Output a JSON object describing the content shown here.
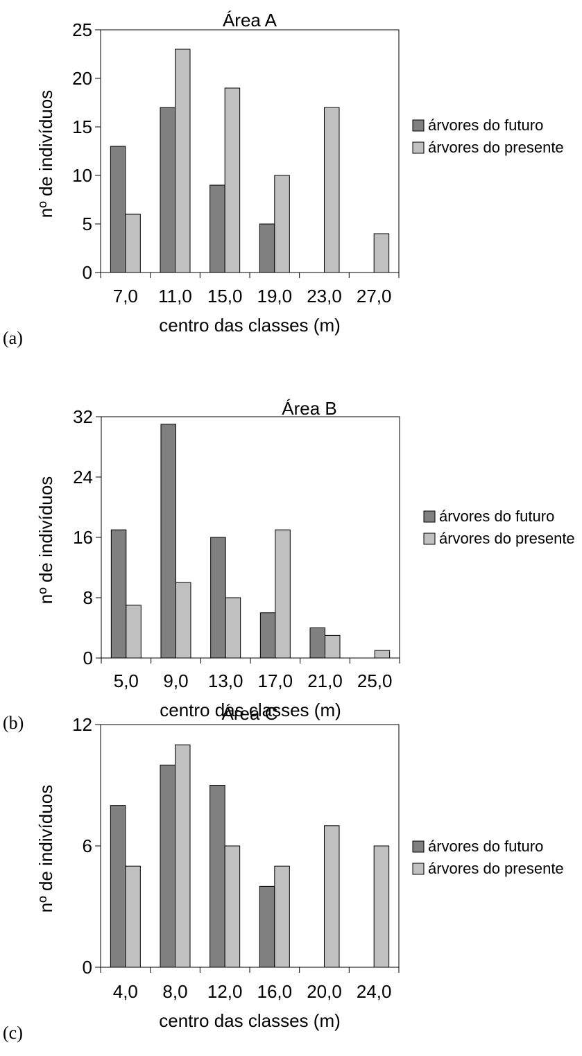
{
  "series_colors": [
    "#808080",
    "#c0c0c0"
  ],
  "chart_data": [
    {
      "type": "bar",
      "panel_label": "(a)",
      "title": "Área A",
      "xlabel": "centro das classes (m)",
      "ylabel": "nº de indivíduos",
      "categories": [
        "7,0",
        "11,0",
        "15,0",
        "19,0",
        "23,0",
        "27,0"
      ],
      "ylim": [
        0,
        25
      ],
      "yticks": [
        "0",
        "5",
        "10",
        "15",
        "20",
        "25"
      ],
      "legend_position": "right",
      "grid": false,
      "series": [
        {
          "name": "árvores do futuro",
          "values": [
            13,
            17,
            9,
            5,
            0,
            0
          ]
        },
        {
          "name": "árvores do presente",
          "values": [
            6,
            23,
            19,
            10,
            17,
            4
          ]
        }
      ]
    },
    {
      "type": "bar",
      "panel_label": "(b)",
      "title": "Área B",
      "xlabel": "centro das classes (m)",
      "ylabel": "nº de indivíduos",
      "categories": [
        "5,0",
        "9,0",
        "13,0",
        "17,0",
        "21,0",
        "25,0"
      ],
      "ylim": [
        0,
        32
      ],
      "yticks": [
        "0",
        "8",
        "16",
        "24",
        "32"
      ],
      "legend_position": "right",
      "grid": false,
      "series": [
        {
          "name": "árvores do futuro",
          "values": [
            17,
            31,
            16,
            6,
            4,
            0
          ]
        },
        {
          "name": "árvores do presente",
          "values": [
            7,
            10,
            8,
            17,
            3,
            1
          ]
        }
      ]
    },
    {
      "type": "bar",
      "panel_label": "(c)",
      "title": "Área C",
      "xlabel": "centro das classes (m)",
      "ylabel": "nº de indivíduos",
      "categories": [
        "4,0",
        "8,0",
        "12,0",
        "16,0",
        "20,0",
        "24,0"
      ],
      "ylim": [
        0,
        12
      ],
      "yticks": [
        "0",
        "6",
        "12"
      ],
      "legend_position": "right",
      "grid": false,
      "series": [
        {
          "name": "árvores do futuro",
          "values": [
            8,
            10,
            9,
            4,
            0,
            0
          ]
        },
        {
          "name": "árvores do presente",
          "values": [
            5,
            11,
            6,
            5,
            7,
            6
          ]
        }
      ]
    }
  ]
}
